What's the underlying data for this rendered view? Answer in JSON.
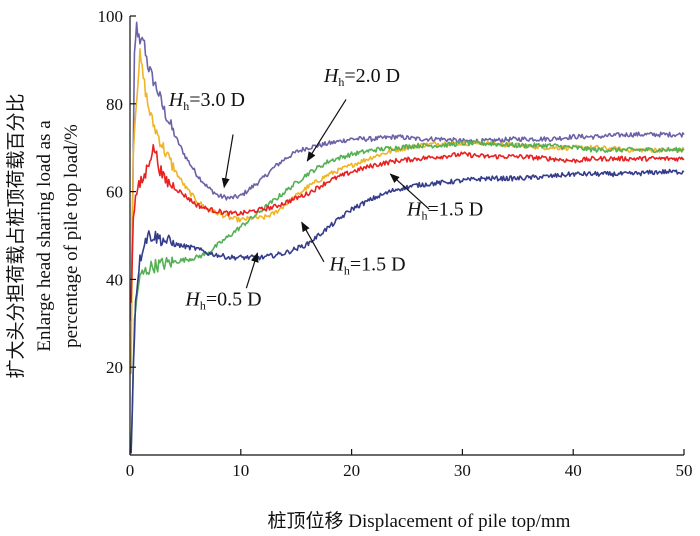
{
  "chart_data": {
    "type": "line",
    "title": "",
    "xlabel": "桩顶位移 Displacement of pile top/mm",
    "ylabel_lines": [
      "扩大头分担荷载占桩顶荷载百分比",
      "Enlarge head sharing load as a",
      "percentage of pile top load/%"
    ],
    "xlim": [
      0,
      50
    ],
    "ylim": [
      0,
      100
    ],
    "x_ticks": [
      0,
      10,
      20,
      30,
      40,
      50
    ],
    "y_ticks": [
      20,
      40,
      60,
      80,
      100
    ],
    "x_tick_labels": [
      "0",
      "10",
      "20",
      "30",
      "40",
      "50"
    ],
    "y_tick_labels": [
      "20",
      "40",
      "60",
      "80",
      "100"
    ],
    "series": [
      {
        "name": "Hh=3.0 D",
        "color": "#6b62a8",
        "x": [
          0.1,
          0.4,
          0.6,
          0.9,
          1.2,
          1.6,
          2.0,
          2.5,
          3,
          4,
          5,
          6,
          7,
          8,
          9,
          10,
          11,
          12,
          13,
          14,
          15,
          16,
          18,
          20,
          22,
          24,
          26,
          28,
          30,
          32,
          35,
          38,
          40,
          42,
          45,
          48,
          50
        ],
        "y": [
          30,
          90,
          98,
          93,
          95,
          89,
          86,
          83,
          79,
          73,
          68,
          64,
          61,
          59,
          58.5,
          59,
          61,
          63,
          65.5,
          67.5,
          69,
          70,
          71,
          72,
          72,
          72.5,
          72,
          72,
          71.5,
          71.5,
          72,
          72,
          72.5,
          72.5,
          73,
          73,
          73
        ]
      },
      {
        "name": "Hh=2.0 D",
        "color": "#f0b428",
        "x": [
          0.1,
          0.3,
          0.6,
          0.9,
          1.2,
          1.6,
          2.0,
          2.5,
          3,
          4,
          5,
          6,
          7,
          8,
          9,
          10,
          11,
          12,
          13,
          14,
          16,
          18,
          20,
          22,
          24,
          26,
          28,
          30,
          32,
          35,
          38,
          40,
          42,
          45,
          48,
          50
        ],
        "y": [
          20,
          70,
          82,
          91,
          86,
          80,
          76,
          73,
          70,
          65,
          61,
          58,
          56,
          55,
          54,
          53.5,
          54,
          54,
          55,
          57,
          61,
          64,
          66,
          68,
          69.5,
          70.5,
          71,
          71,
          71,
          70.5,
          70,
          70,
          70,
          69.5,
          69.5,
          69.5
        ]
      },
      {
        "name": "Hh=1.5 D",
        "color": "#55b055",
        "x": [
          0.1,
          0.4,
          0.7,
          1.0,
          1.5,
          2,
          3,
          4,
          5,
          6,
          7,
          8,
          9,
          10,
          11,
          12,
          13,
          14,
          15,
          16,
          17,
          18,
          20,
          22,
          24,
          26,
          28,
          30,
          32,
          35,
          38,
          40,
          42,
          45,
          48,
          50
        ],
        "y": [
          1,
          30,
          38,
          41,
          42,
          43,
          43.5,
          44,
          44.5,
          45,
          46,
          48,
          50,
          52,
          54,
          56,
          58,
          60,
          62,
          64,
          65.5,
          67,
          68.5,
          69.5,
          70,
          70.5,
          70.5,
          71,
          71,
          70.5,
          70.5,
          70,
          69.5,
          69.5,
          69.5,
          69.5
        ]
      },
      {
        "name": "Hh=1.5 D",
        "color": "#e82222",
        "x": [
          0.1,
          0.3,
          0.6,
          1.0,
          1.4,
          1.8,
          2.2,
          2.6,
          3,
          4,
          5,
          6,
          7,
          8,
          9,
          10,
          11,
          12,
          13,
          14,
          15,
          16,
          17,
          18,
          20,
          22,
          24,
          26,
          28,
          30,
          32,
          35,
          38,
          40,
          42,
          45,
          48,
          50
        ],
        "y": [
          35,
          55,
          60,
          62,
          64,
          68,
          70,
          66,
          63,
          61,
          59,
          57,
          56,
          55.5,
          55,
          55,
          55.5,
          56,
          56.5,
          57.5,
          58.5,
          59.5,
          61,
          62.5,
          64.5,
          66,
          67,
          67.5,
          68,
          68.5,
          68,
          68,
          67.5,
          67,
          67.5,
          67.5,
          67.5,
          67.5
        ]
      },
      {
        "name": "Hh=0.5 D",
        "color": "#353c8a",
        "x": [
          0.1,
          0.3,
          0.5,
          0.8,
          1.2,
          1.6,
          2,
          3,
          4,
          5,
          6,
          7,
          8,
          9,
          10,
          11,
          12,
          13,
          14,
          15,
          16,
          17,
          18,
          19,
          20,
          22,
          24,
          26,
          28,
          30,
          32,
          35,
          38,
          40,
          42,
          45,
          48,
          50
        ],
        "y": [
          1,
          20,
          35,
          43,
          48,
          50,
          50,
          49,
          48,
          47.5,
          47,
          46,
          45.5,
          45,
          45,
          45,
          45,
          45.5,
          46,
          47,
          48,
          50,
          52,
          54,
          56,
          58.5,
          60.5,
          61.5,
          62,
          62.5,
          63,
          63,
          63.5,
          64,
          64,
          64,
          64.5,
          64.5
        ]
      }
    ],
    "annotations": [
      {
        "name": "hh-3-0",
        "base": "H",
        "sub": "h",
        "rest": "=3.0 D",
        "text_x": 3.5,
        "text_y": 79.5,
        "arrow_from": [
          9.3,
          73
        ],
        "arrow_to": [
          8.5,
          61
        ]
      },
      {
        "name": "hh-2-0",
        "base": "H",
        "sub": "h",
        "rest": "=2.0 D",
        "text_x": 17.5,
        "text_y": 85,
        "arrow_from": [
          19.5,
          81
        ],
        "arrow_to": [
          16,
          67
        ]
      },
      {
        "name": "hh-1-5-red",
        "base": "H",
        "sub": "h",
        "rest": "=1.5 D",
        "text_x": 25,
        "text_y": 54.5,
        "arrow_from": [
          27,
          56
        ],
        "arrow_to": [
          23.5,
          64
        ]
      },
      {
        "name": "hh-1-5-green",
        "base": "H",
        "sub": "h",
        "rest": "=1.5 D",
        "text_x": 18,
        "text_y": 42,
        "arrow_from": [
          17.5,
          44
        ],
        "arrow_to": [
          15.5,
          53
        ]
      },
      {
        "name": "hh-0-5",
        "base": "H",
        "sub": "h",
        "rest": "=0.5 D",
        "text_x": 5,
        "text_y": 34,
        "arrow_from": [
          10.5,
          38
        ],
        "arrow_to": [
          11.5,
          46
        ]
      }
    ],
    "grid": false,
    "legend": "none"
  }
}
